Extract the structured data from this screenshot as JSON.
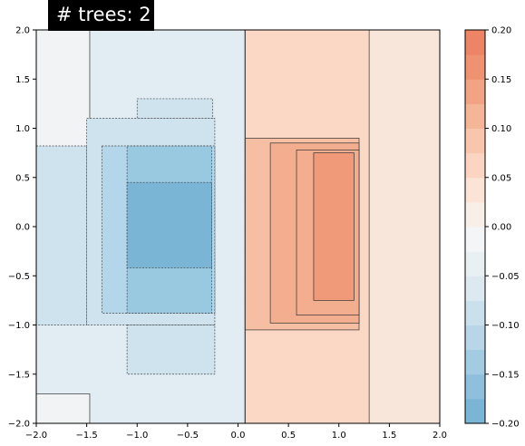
{
  "title": "# trees: 2",
  "colors": {
    "neg3": "#7bb5d5",
    "neg2": "#99c8e1",
    "neg1": "#b4d6ea",
    "neg0": "#cfe3ef",
    "negx": "#e2ecf3",
    "neutral": "#f1f3f4",
    "posx": "#f9e6db",
    "pos0": "#fbd8c5",
    "pos1": "#f6bfa3",
    "pos2": "#f3ae8f",
    "pos3": "#f09a79",
    "line": "#333333",
    "dashline": "#444444"
  },
  "chart_data": {
    "type": "heatmap",
    "title": "# trees: 2",
    "xlim": [
      -2.0,
      2.0
    ],
    "ylim": [
      -2.0,
      2.0
    ],
    "xticks": [
      "−2.0",
      "−1.5",
      "−1.0",
      "−0.5",
      "0.0",
      "0.5",
      "1.0",
      "1.5",
      "2.0"
    ],
    "yticks": [
      "2.0",
      "1.5",
      "1.0",
      "0.5",
      "0.0",
      "−0.5",
      "−1.0",
      "−1.5",
      "−2.0"
    ],
    "colorbar": {
      "range": [
        -0.2,
        0.2
      ],
      "ticks": [
        "0.20",
        "0.15",
        "0.10",
        "0.05",
        "0.00",
        "−0.05",
        "−0.10",
        "−0.15",
        "−0.20"
      ],
      "levels": [
        "#7bb5d5",
        "#8ebfdc",
        "#a3cbe2",
        "#b8d6e8",
        "#cbe0ed",
        "#dce9f1",
        "#e9f0f4",
        "#f3f5f6",
        "#f9efe9",
        "#fbe3d6",
        "#fbd5c2",
        "#f8c6ad",
        "#f5b597",
        "#f2a383",
        "#ef9272",
        "#ed8465"
      ]
    },
    "regions": [
      {
        "x0": -2.0,
        "x1": 0.07,
        "y0": -2.0,
        "y1": 2.0,
        "level": "negx"
      },
      {
        "x0": -2.0,
        "x1": -1.47,
        "y0": 0.8,
        "y1": 2.0,
        "level": "neutral"
      },
      {
        "x0": -2.0,
        "x1": -1.47,
        "y0": -2.0,
        "y1": -1.7,
        "level": "neutral"
      },
      {
        "x0": -1.5,
        "x1": -0.23,
        "y0": -1.0,
        "y1": 1.1,
        "level": "neg0"
      },
      {
        "x0": -1.1,
        "x1": -0.23,
        "y0": -1.5,
        "y1": -1.0,
        "level": "neg0"
      },
      {
        "x0": -1.0,
        "x1": -0.25,
        "y0": 1.1,
        "y1": 1.3,
        "level": "neg0"
      },
      {
        "x0": -2.0,
        "x1": -1.5,
        "y0": -1.0,
        "y1": 0.82,
        "level": "neg0"
      },
      {
        "x0": -1.35,
        "x1": -0.23,
        "y0": -0.88,
        "y1": 0.82,
        "level": "neg1"
      },
      {
        "x0": -1.1,
        "x1": -0.26,
        "y0": -0.88,
        "y1": 0.82,
        "level": "neg2"
      },
      {
        "x0": -1.1,
        "x1": -0.26,
        "y0": -0.42,
        "y1": 0.45,
        "level": "neg3"
      },
      {
        "x0": 0.07,
        "x1": 2.0,
        "y0": -2.0,
        "y1": 2.0,
        "level": "posx"
      },
      {
        "x0": 0.07,
        "x1": 1.3,
        "y0": -2.0,
        "y1": 2.0,
        "level": "pos0"
      },
      {
        "x0": 0.07,
        "x1": 1.2,
        "y0": -1.05,
        "y1": 0.9,
        "level": "pos1"
      },
      {
        "x0": 0.32,
        "x1": 1.2,
        "y0": -0.98,
        "y1": 0.85,
        "level": "pos2"
      },
      {
        "x0": 0.58,
        "x1": 1.2,
        "y0": -0.9,
        "y1": 0.78,
        "level": "pos2"
      },
      {
        "x0": 0.75,
        "x1": 1.15,
        "y0": -0.75,
        "y1": 0.75,
        "level": "pos3"
      }
    ]
  }
}
